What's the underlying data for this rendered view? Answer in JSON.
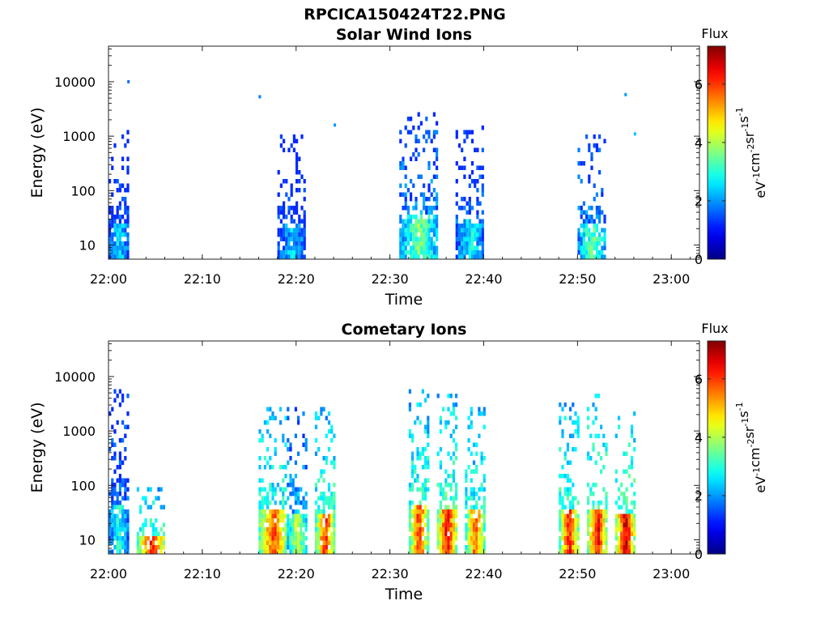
{
  "figure_title": "RPCICA150424T22.PNG",
  "chart_data": [
    {
      "type": "heatmap",
      "title": "Solar Wind Ions",
      "xlabel": "Time",
      "ylabel": "Energy (eV)",
      "y_scale": "log",
      "ylim": [
        5.5,
        45000
      ],
      "xlim": [
        "22:00",
        "23:03"
      ],
      "x_ticks": [
        "22:00",
        "22:10",
        "22:20",
        "22:30",
        "22:40",
        "22:50",
        "23:00"
      ],
      "y_ticks": [
        "10",
        "100",
        "1000",
        "10000"
      ],
      "y_tick_values": [
        10,
        100,
        1000,
        10000
      ],
      "colorbar": {
        "title": "Flux",
        "label": "eV-1cm-2sr-1s-1",
        "label_parts": [
          "eV",
          "-1",
          "cm",
          "-2",
          "sr",
          "-1",
          "s",
          "-1"
        ],
        "range": [
          0,
          7.3
        ],
        "ticks": [
          "0",
          "2",
          "4",
          "6"
        ]
      },
      "bursts": [
        {
          "start": "22:00",
          "end": "22:02",
          "e_min": 6,
          "e_max": 1400,
          "level": 2.6
        },
        {
          "start": "22:18",
          "end": "22:21",
          "e_min": 6,
          "e_max": 1100,
          "level": 2.4
        },
        {
          "start": "22:31",
          "end": "22:35",
          "e_min": 6,
          "e_max": 4000,
          "level": 3.6
        },
        {
          "start": "22:37",
          "end": "22:40",
          "e_min": 6,
          "e_max": 1700,
          "level": 2.8
        },
        {
          "start": "22:50",
          "end": "22:53",
          "e_min": 6,
          "e_max": 1100,
          "level": 3.4
        }
      ],
      "isolated_points": [
        {
          "time": "22:02",
          "energy": 10000,
          "level": 1.7
        },
        {
          "time": "22:16",
          "energy": 5300,
          "level": 1.8
        },
        {
          "time": "22:24",
          "energy": 1600,
          "level": 2.0
        },
        {
          "time": "22:55",
          "energy": 5800,
          "level": 2.0
        },
        {
          "time": "22:56",
          "energy": 1100,
          "level": 2.3
        }
      ]
    },
    {
      "type": "heatmap",
      "title": "Cometary Ions",
      "xlabel": "Time",
      "ylabel": "Energy (eV)",
      "y_scale": "log",
      "ylim": [
        5.5,
        45000
      ],
      "xlim": [
        "22:00",
        "23:03"
      ],
      "x_ticks": [
        "22:00",
        "22:10",
        "22:20",
        "22:30",
        "22:40",
        "22:50",
        "23:00"
      ],
      "y_ticks": [
        "10",
        "100",
        "1000",
        "10000"
      ],
      "y_tick_values": [
        10,
        100,
        1000,
        10000
      ],
      "colorbar": {
        "title": "Flux",
        "label": "eV-1cm-2sr-1s-1",
        "label_parts": [
          "eV",
          "-1",
          "cm",
          "-2",
          "sr",
          "-1",
          "s",
          "-1"
        ],
        "range": [
          0,
          7.3
        ],
        "ticks": [
          "0",
          "2",
          "4",
          "6"
        ]
      },
      "bursts": [
        {
          "start": "22:00",
          "end": "22:02",
          "e_min": 6,
          "e_max": 7000,
          "level": 3.0
        },
        {
          "start": "22:03",
          "end": "22:06",
          "e_min": 6,
          "e_max": 100,
          "level": 6.2
        },
        {
          "start": "22:16",
          "end": "22:19",
          "e_min": 6,
          "e_max": 4000,
          "level": 6.0
        },
        {
          "start": "22:19",
          "end": "22:21",
          "e_min": 6,
          "e_max": 2800,
          "level": 4.3
        },
        {
          "start": "22:22",
          "end": "22:24",
          "e_min": 6,
          "e_max": 2800,
          "level": 6.2
        },
        {
          "start": "22:32",
          "end": "22:34",
          "e_min": 6,
          "e_max": 6000,
          "level": 6.1
        },
        {
          "start": "22:35",
          "end": "22:37",
          "e_min": 6,
          "e_max": 5500,
          "level": 6.6
        },
        {
          "start": "22:38",
          "end": "22:40",
          "e_min": 6,
          "e_max": 4000,
          "level": 5.8
        },
        {
          "start": "22:48",
          "end": "22:50",
          "e_min": 6,
          "e_max": 4000,
          "level": 6.4
        },
        {
          "start": "22:51",
          "end": "22:53",
          "e_min": 6,
          "e_max": 5000,
          "level": 6.6
        },
        {
          "start": "22:54",
          "end": "22:56",
          "e_min": 6,
          "e_max": 2600,
          "level": 6.9
        }
      ],
      "isolated_points": []
    }
  ]
}
